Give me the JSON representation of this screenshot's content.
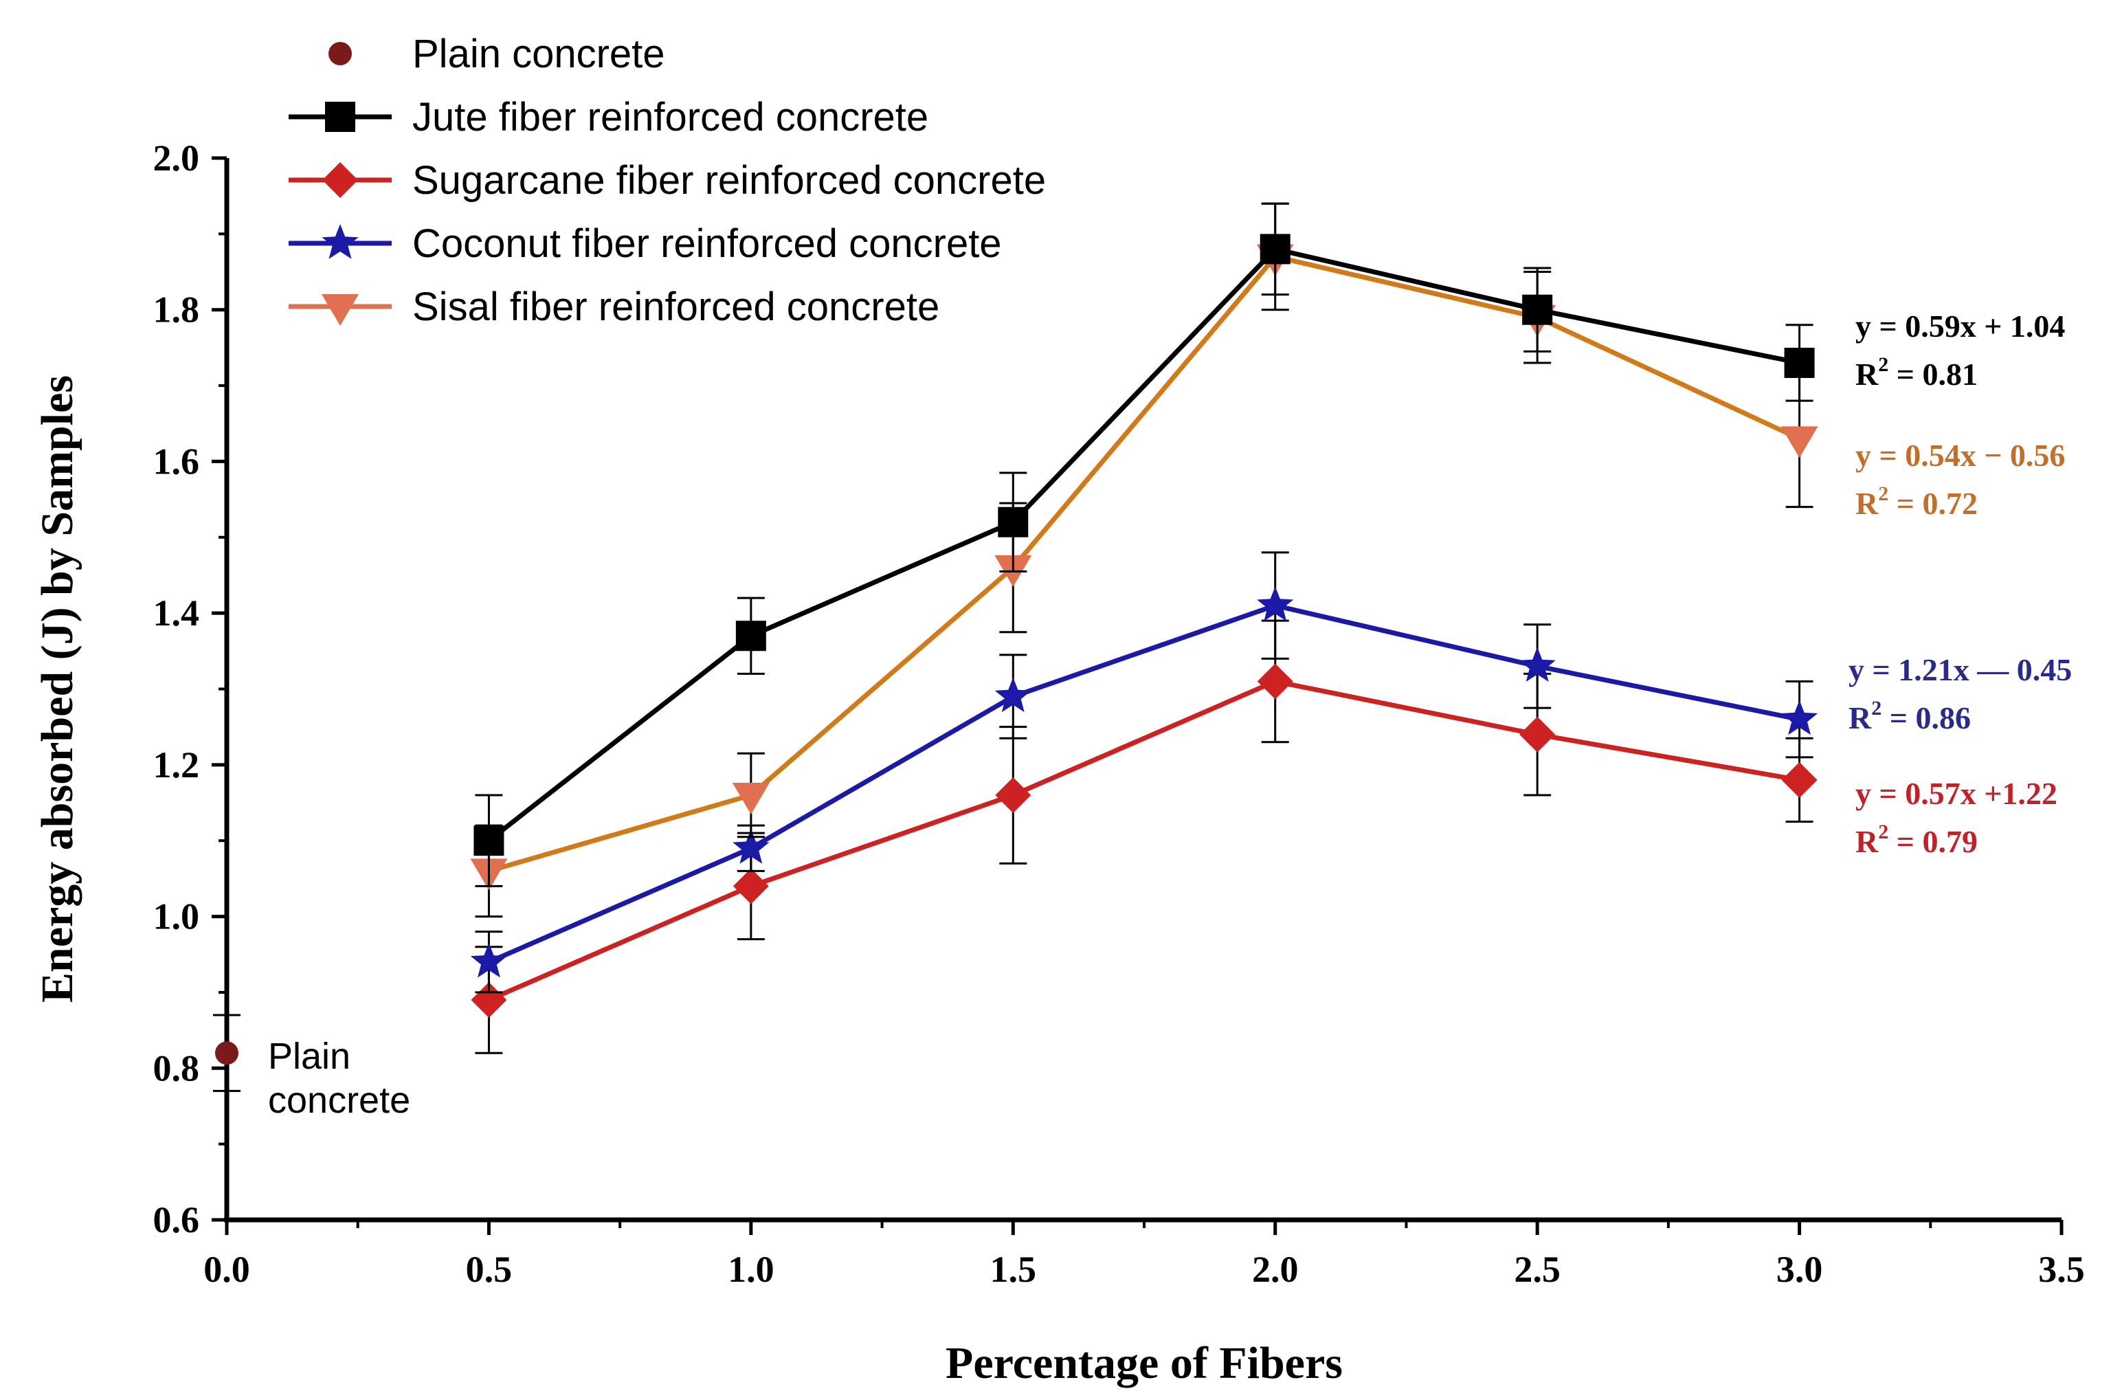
{
  "chart_data": {
    "type": "line",
    "xlabel": "Percentage of Fibers",
    "ylabel": "Energy absorbed (J) by Samples",
    "xlim": [
      0.0,
      3.5
    ],
    "ylim": [
      0.6,
      2.0
    ],
    "x_ticks": [
      "0.0",
      "0.5",
      "1.0",
      "1.5",
      "2.0",
      "2.5",
      "3.0",
      "3.5"
    ],
    "y_ticks": [
      "0.6",
      "0.8",
      "1.0",
      "1.2",
      "1.4",
      "1.6",
      "1.8",
      "2.0"
    ],
    "x": [
      0.5,
      1.0,
      1.5,
      2.0,
      2.5,
      3.0
    ],
    "legend_position": "top-left",
    "plain": {
      "name": "Plain concrete",
      "x": 0.0,
      "y": 0.82,
      "err": 0.05,
      "color": "#7a1a1a",
      "marker": "circle",
      "label": "Plain concrete"
    },
    "series": [
      {
        "name": "Jute fiber reinforced concrete",
        "color": "#000000",
        "marker": "square",
        "values": [
          1.1,
          1.37,
          1.52,
          1.88,
          1.8,
          1.73
        ],
        "errors": [
          0.06,
          0.05,
          0.065,
          0.06,
          0.055,
          0.05
        ],
        "equation": "y = 0.59x + 1.04",
        "r2_value": "= 0.81"
      },
      {
        "name": "Sugarcane fiber reinforced concrete",
        "color": "#cc2222",
        "marker": "diamond",
        "values": [
          0.89,
          1.04,
          1.16,
          1.31,
          1.24,
          1.18
        ],
        "errors": [
          0.07,
          0.07,
          0.09,
          0.08,
          0.08,
          0.055
        ],
        "equation": "y = 0.57x +1.22",
        "r2_value": "= 0.79"
      },
      {
        "name": "Coconut fiber reinforced concrete",
        "color": "#1a1aa6",
        "marker": "star",
        "values": [
          0.94,
          1.09,
          1.29,
          1.41,
          1.33,
          1.26
        ],
        "errors": [
          0.04,
          0.03,
          0.055,
          0.07,
          0.055,
          0.05
        ],
        "equation": "y = 1.21x — 0.45",
        "r2_value": "= 0.86"
      },
      {
        "name": "Sisal fiber reinforced concrete",
        "color": "#e07050",
        "line_color": "#d07a1a",
        "marker": "triangle-down",
        "values": [
          1.06,
          1.16,
          1.46,
          1.87,
          1.79,
          1.63
        ],
        "errors": [
          0.06,
          0.055,
          0.085,
          0.07,
          0.06,
          0.09
        ],
        "equation": "y = 0.54x − 0.56",
        "r2_value": "= 0.72"
      }
    ]
  }
}
